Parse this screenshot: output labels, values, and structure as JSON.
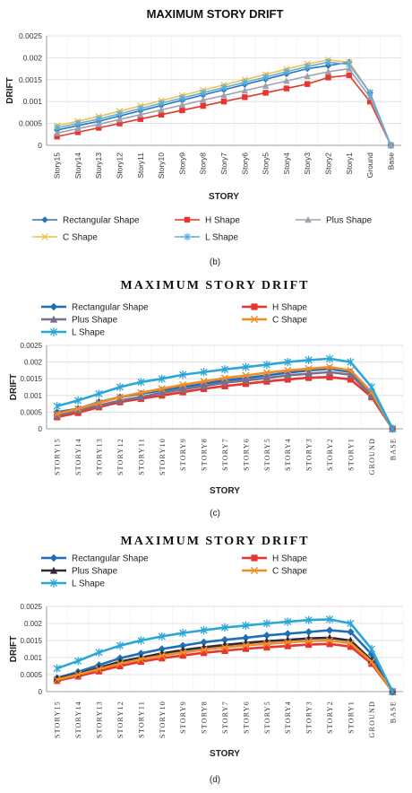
{
  "chart_data": [
    {
      "type": "line",
      "panel_label": "(b)",
      "title": "MAXIMUM STORY DRIFT",
      "xlabel": "STORY",
      "ylabel": "DRIFT",
      "ylim": [
        0,
        0.0025
      ],
      "yticks": [
        "0",
        "0.0005",
        "0.001",
        "0.0015",
        "0.002",
        "0.0025"
      ],
      "grid": true,
      "legend_position": "bottom",
      "categories": [
        "Story15",
        "Story14",
        "Story13",
        "Story12",
        "Story11",
        "Story10",
        "Story9",
        "Story8",
        "Story7",
        "Story6",
        "Story5",
        "Story4",
        "Story3",
        "Story2",
        "Story1",
        "Ground",
        "Base"
      ],
      "series": [
        {
          "name": "Rectangular Shape",
          "color": "#2e75b6",
          "marker": "diamond",
          "values": [
            0.00035,
            0.00045,
            0.00055,
            0.00067,
            0.00079,
            0.00091,
            0.00103,
            0.00115,
            0.00127,
            0.00139,
            0.00151,
            0.00163,
            0.00175,
            0.00182,
            0.0019,
            0.0012,
            0.0
          ]
        },
        {
          "name": "H Shape",
          "color": "#e8362e",
          "marker": "square",
          "values": [
            0.0002,
            0.0003,
            0.0004,
            0.0005,
            0.0006,
            0.0007,
            0.0008,
            0.0009,
            0.001,
            0.0011,
            0.0012,
            0.0013,
            0.0014,
            0.00155,
            0.0016,
            0.001,
            0.0
          ]
        },
        {
          "name": "Plus Shape",
          "color": "#a09fb0",
          "marker": "triangle",
          "values": [
            0.00028,
            0.00038,
            0.00048,
            0.00059,
            0.0007,
            0.00081,
            0.00092,
            0.00103,
            0.00114,
            0.00125,
            0.00136,
            0.00147,
            0.00158,
            0.00168,
            0.00175,
            0.0011,
            0.0
          ]
        },
        {
          "name": "C Shape",
          "color": "#f2c14e",
          "marker": "x",
          "values": [
            0.00045,
            0.00055,
            0.00066,
            0.00078,
            0.0009,
            0.00102,
            0.00114,
            0.00126,
            0.00138,
            0.0015,
            0.00162,
            0.00174,
            0.00186,
            0.00195,
            0.0019,
            0.0012,
            0.0
          ]
        },
        {
          "name": "L Shape",
          "color": "#5aaee0",
          "marker": "star",
          "values": [
            0.0004,
            0.0005,
            0.0006,
            0.00072,
            0.00084,
            0.00096,
            0.00108,
            0.0012,
            0.00132,
            0.00144,
            0.00156,
            0.00168,
            0.0018,
            0.0019,
            0.00185,
            0.0012,
            0.0
          ]
        }
      ]
    },
    {
      "type": "line",
      "panel_label": "(c)",
      "title": "MAXIMUM STORY DRIFT",
      "xlabel": "STORY",
      "ylabel": "DRIFT",
      "ylim": [
        0,
        0.0025
      ],
      "yticks": [
        "0",
        "0.0005",
        "0.001",
        "0.0015",
        "0.002",
        "0.0025"
      ],
      "grid": true,
      "legend_position": "top",
      "categories": [
        "STORY15",
        "STORY14",
        "STORY13",
        "STORY12",
        "STORY11",
        "STORY10",
        "STORY9",
        "STORY8",
        "STORY7",
        "STORY6",
        "STORY5",
        "STORY4",
        "STORY3",
        "STORY2",
        "STORY1",
        "GROUND",
        "BASE"
      ],
      "series": [
        {
          "name": "Rectangular Shape",
          "color": "#1f6fb8",
          "marker": "diamond",
          "values": [
            0.0005,
            0.0006,
            0.0008,
            0.00095,
            0.00105,
            0.00115,
            0.00125,
            0.00135,
            0.00145,
            0.00152,
            0.0016,
            0.00168,
            0.00175,
            0.0018,
            0.0017,
            0.0011,
            0.0
          ]
        },
        {
          "name": "H Shape",
          "color": "#e8362e",
          "marker": "square",
          "values": [
            0.00035,
            0.00048,
            0.00065,
            0.0008,
            0.0009,
            0.001,
            0.0011,
            0.0012,
            0.00128,
            0.00135,
            0.00142,
            0.00148,
            0.00153,
            0.00155,
            0.00148,
            0.00095,
            0.0
          ]
        },
        {
          "name": "Plus Shape",
          "color": "#7a6f8c",
          "marker": "triangle",
          "values": [
            0.0004,
            0.00055,
            0.0007,
            0.00085,
            0.00095,
            0.00108,
            0.00118,
            0.00128,
            0.00138,
            0.00145,
            0.00152,
            0.0016,
            0.00165,
            0.0017,
            0.00162,
            0.001,
            0.0
          ]
        },
        {
          "name": "C Shape",
          "color": "#f28c28",
          "marker": "x",
          "values": [
            0.00045,
            0.0006,
            0.00078,
            0.00095,
            0.00108,
            0.0012,
            0.00132,
            0.00142,
            0.00152,
            0.0016,
            0.00168,
            0.00175,
            0.0018,
            0.00185,
            0.00175,
            0.0011,
            0.0
          ]
        },
        {
          "name": "L Shape",
          "color": "#2aa7d8",
          "marker": "star",
          "values": [
            0.00068,
            0.00085,
            0.00105,
            0.00125,
            0.0014,
            0.0015,
            0.00162,
            0.0017,
            0.00178,
            0.00185,
            0.00192,
            0.002,
            0.00206,
            0.0021,
            0.002,
            0.00125,
            0.0
          ]
        }
      ]
    },
    {
      "type": "line",
      "panel_label": "(d)",
      "title": "MAXIMUM STORY DRIFT",
      "xlabel": "STORY",
      "ylabel": "DRIFT",
      "ylim": [
        0,
        0.0025
      ],
      "yticks": [
        "0",
        "0.0005",
        "0.001",
        "0.0015",
        "0.002",
        "0.0025"
      ],
      "grid": true,
      "legend_position": "top",
      "categories": [
        "STORY15",
        "STORY14",
        "STORY13",
        "STORY12",
        "STORY11",
        "STORY10",
        "STORY9",
        "STORY8",
        "STORY7",
        "STORY6",
        "STORY5",
        "STORY4",
        "STORY3",
        "STORY2",
        "STORY1",
        "GROUND",
        "BASE"
      ],
      "series": [
        {
          "name": "Rectangular Shape",
          "color": "#1f6fb8",
          "marker": "diamond",
          "values": [
            0.0004,
            0.00058,
            0.00078,
            0.00098,
            0.00112,
            0.00125,
            0.00135,
            0.00145,
            0.00152,
            0.00158,
            0.00165,
            0.0017,
            0.00175,
            0.0018,
            0.00175,
            0.0011,
            0.0
          ]
        },
        {
          "name": "H Shape",
          "color": "#e8362e",
          "marker": "square",
          "values": [
            0.00032,
            0.00045,
            0.0006,
            0.00075,
            0.00088,
            0.00098,
            0.00106,
            0.00114,
            0.0012,
            0.00126,
            0.0013,
            0.00134,
            0.00138,
            0.0014,
            0.00132,
            0.00082,
            0.0
          ]
        },
        {
          "name": "Plus Shape",
          "color": "#2e2a3a",
          "marker": "triangle",
          "values": [
            0.00038,
            0.00052,
            0.0007,
            0.00088,
            0.001,
            0.00112,
            0.00122,
            0.0013,
            0.00137,
            0.00143,
            0.00148,
            0.00152,
            0.00156,
            0.00158,
            0.0015,
            0.00092,
            0.0
          ]
        },
        {
          "name": "C Shape",
          "color": "#f28c28",
          "marker": "x",
          "values": [
            0.00035,
            0.0005,
            0.00066,
            0.00082,
            0.00095,
            0.00106,
            0.00115,
            0.00123,
            0.0013,
            0.00136,
            0.0014,
            0.00145,
            0.00148,
            0.0015,
            0.00142,
            0.00088,
            0.0
          ]
        },
        {
          "name": "L Shape",
          "color": "#2aa7d8",
          "marker": "star",
          "values": [
            0.00068,
            0.0009,
            0.00115,
            0.00135,
            0.0015,
            0.00162,
            0.00172,
            0.0018,
            0.00188,
            0.00194,
            0.002,
            0.00205,
            0.0021,
            0.00212,
            0.002,
            0.00125,
            0.0
          ]
        }
      ]
    }
  ]
}
